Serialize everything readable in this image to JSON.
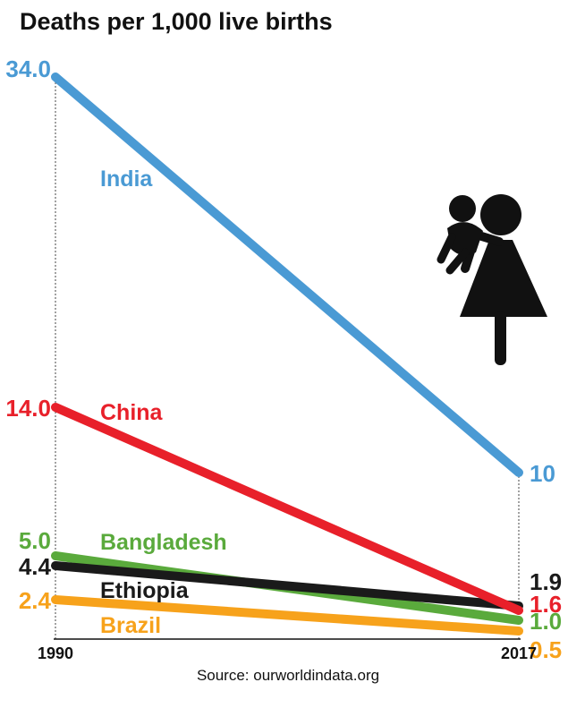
{
  "chart_data": {
    "type": "line",
    "title": "Deaths per 1,000 live births",
    "source": "Source: ourworldindata.org",
    "x": [
      "1990",
      "2017"
    ],
    "series": [
      {
        "name": "India",
        "values": [
          34.0,
          10
        ],
        "labels": [
          "34.0",
          "10"
        ],
        "color": "#4a9ad4"
      },
      {
        "name": "China",
        "values": [
          14.0,
          1.6
        ],
        "labels": [
          "14.0",
          "1.6"
        ],
        "color": "#e8202a"
      },
      {
        "name": "Bangladesh",
        "values": [
          5.0,
          1.0
        ],
        "labels": [
          "5.0",
          "1.0"
        ],
        "color": "#5aaa3c"
      },
      {
        "name": "Ethiopia",
        "values": [
          4.4,
          1.9
        ],
        "labels": [
          "4.4",
          "1.9"
        ],
        "color": "#1a1a1a"
      },
      {
        "name": "Brazil",
        "values": [
          2.4,
          0.5
        ],
        "labels": [
          "2.4",
          "0.5"
        ],
        "color": "#f7a21b"
      }
    ],
    "grid": false,
    "icon": "mother-and-child-icon"
  }
}
